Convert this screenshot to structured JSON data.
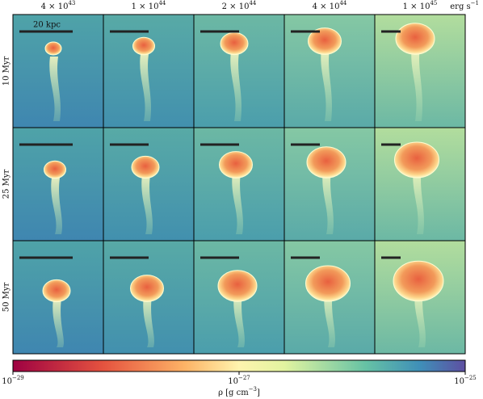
{
  "column_labels": [
    {
      "base": "4 × 10",
      "exponent": "43"
    },
    {
      "base": "1 × 10",
      "exponent": "44"
    },
    {
      "base": "2 × 10",
      "exponent": "44"
    },
    {
      "base": "4 × 10",
      "exponent": "44"
    },
    {
      "base": "1 × 10",
      "exponent": "45"
    }
  ],
  "unit": {
    "base": "erg s",
    "exponent": "−1"
  },
  "row_labels": [
    "10 Myr",
    "25 Myr",
    "50 Myr"
  ],
  "scale_bar_label": "20 kpc",
  "colorbar": {
    "label": {
      "base": "ρ [g cm",
      "exponent": "−3",
      "tail": "]"
    },
    "log": true,
    "lim": [
      1e-29,
      1e-25
    ],
    "ticks": [
      {
        "value": 1e-29,
        "base": "10",
        "exponent": "−29"
      },
      {
        "value": 1e-27,
        "base": "10",
        "exponent": "−27"
      },
      {
        "value": 1e-25,
        "base": "10",
        "exponent": "−25"
      }
    ]
  }
}
